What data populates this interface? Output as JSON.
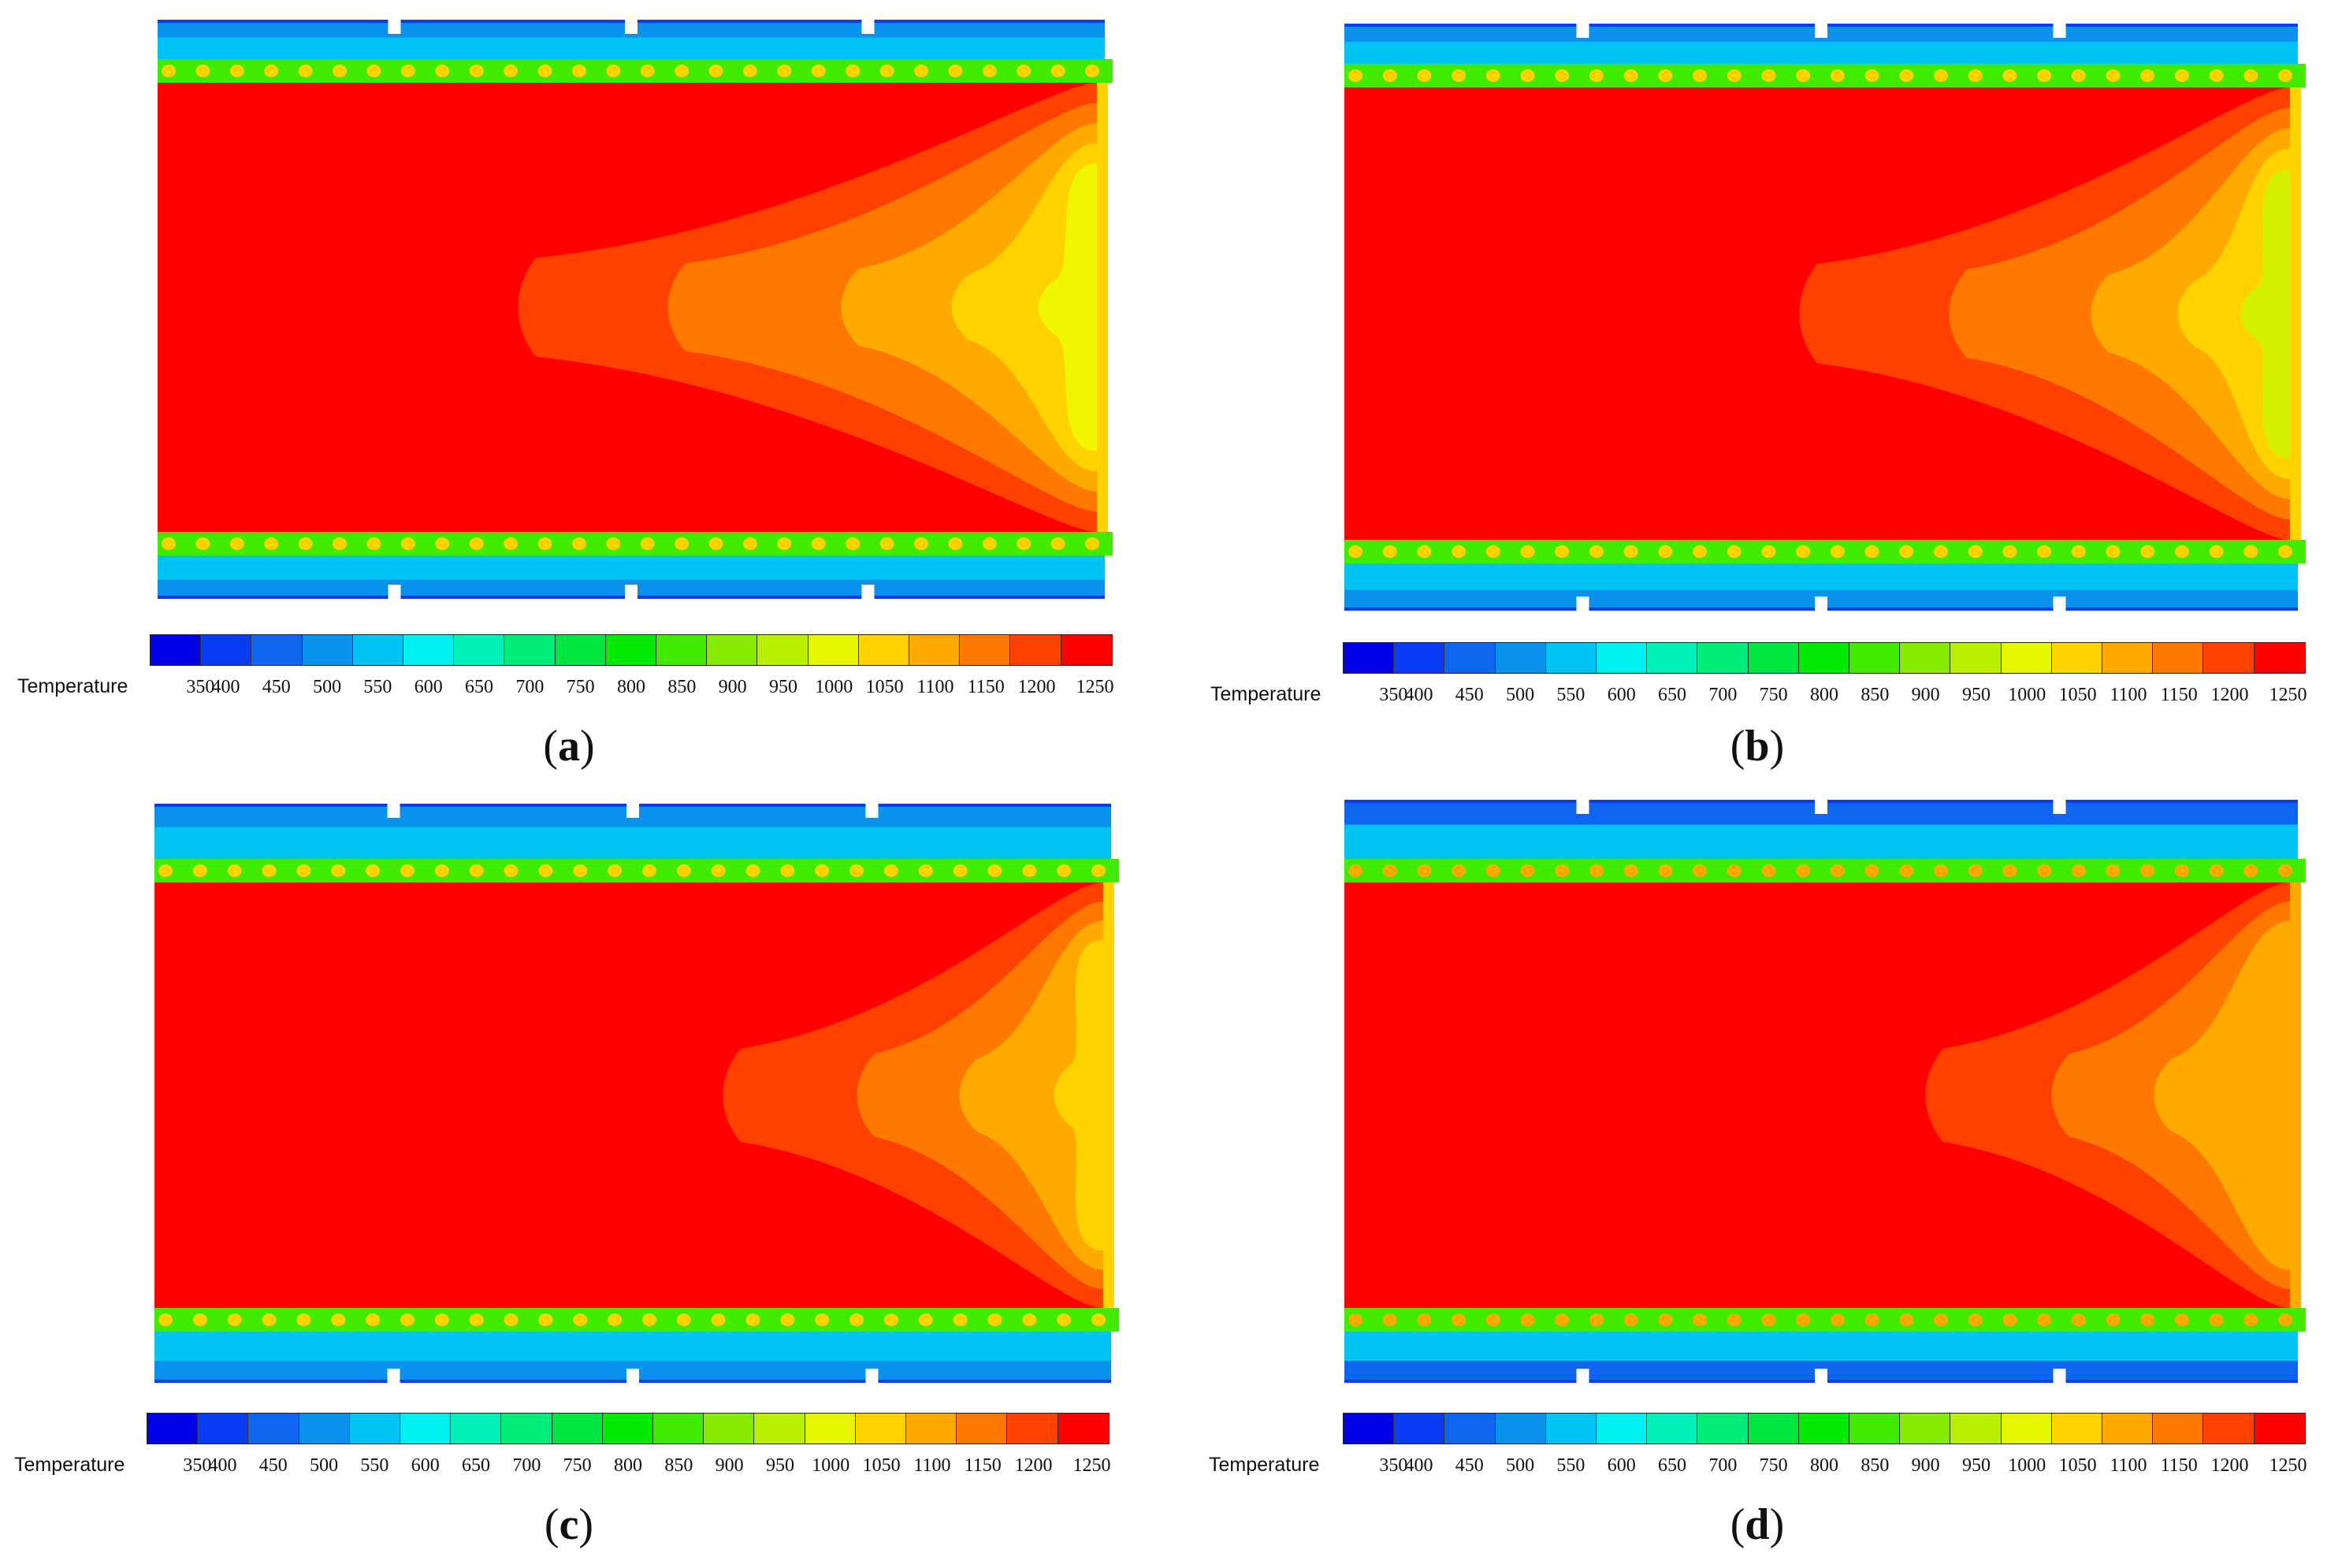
{
  "colorbar": {
    "caption": "Temperature",
    "ticks": [
      "350",
      "400",
      "450",
      "500",
      "550",
      "600",
      "650",
      "700",
      "750",
      "800",
      "850",
      "900",
      "950",
      "1000",
      "1050",
      "1100",
      "1150",
      "1200",
      "1250"
    ],
    "colors": [
      "#0000e6",
      "#0a3cf5",
      "#0f64f0",
      "#0a91eb",
      "#00c3f5",
      "#00f0f0",
      "#00f0b9",
      "#00eb78",
      "#00e641",
      "#00eb00",
      "#41eb00",
      "#87eb00",
      "#b9f000",
      "#e6f500",
      "#ffd200",
      "#ffaa00",
      "#ff7800",
      "#ff4100",
      "#ff0000"
    ]
  },
  "panels": [
    {
      "label_open": "(",
      "label_letter": "a",
      "label_close": ")",
      "contour_colors": [
        "#0a3cf5",
        "#0a91eb",
        "#00c3f5",
        "#41eb00",
        "#ff0000",
        "#ff4100",
        "#ff7800",
        "#ffaa00",
        "#ffd200",
        "#f0f500"
      ]
    },
    {
      "label_open": "(",
      "label_letter": "b",
      "label_close": ")",
      "contour_colors": [
        "#0a3cf5",
        "#0a91eb",
        "#00c3f5",
        "#41eb00",
        "#ff0000",
        "#ff4100",
        "#ff7800",
        "#ffaa00",
        "#ffd200",
        "#d2f000"
      ]
    },
    {
      "label_open": "(",
      "label_letter": "c",
      "label_close": ")",
      "contour_colors": [
        "#0a3cf5",
        "#0a91eb",
        "#00c3f5",
        "#41eb00",
        "#ff0000",
        "#ff4100",
        "#ff7800",
        "#ffaa00",
        "#ffd200",
        "#ffd200"
      ]
    },
    {
      "label_open": "(",
      "label_letter": "d",
      "label_close": ")",
      "contour_colors": [
        "#0a3cf5",
        "#0f64f0",
        "#00c3f5",
        "#41eb00",
        "#ff0000",
        "#ff4100",
        "#ff7800",
        "#ffaa00",
        "#ffaa00",
        "#ffaa00"
      ]
    }
  ]
}
